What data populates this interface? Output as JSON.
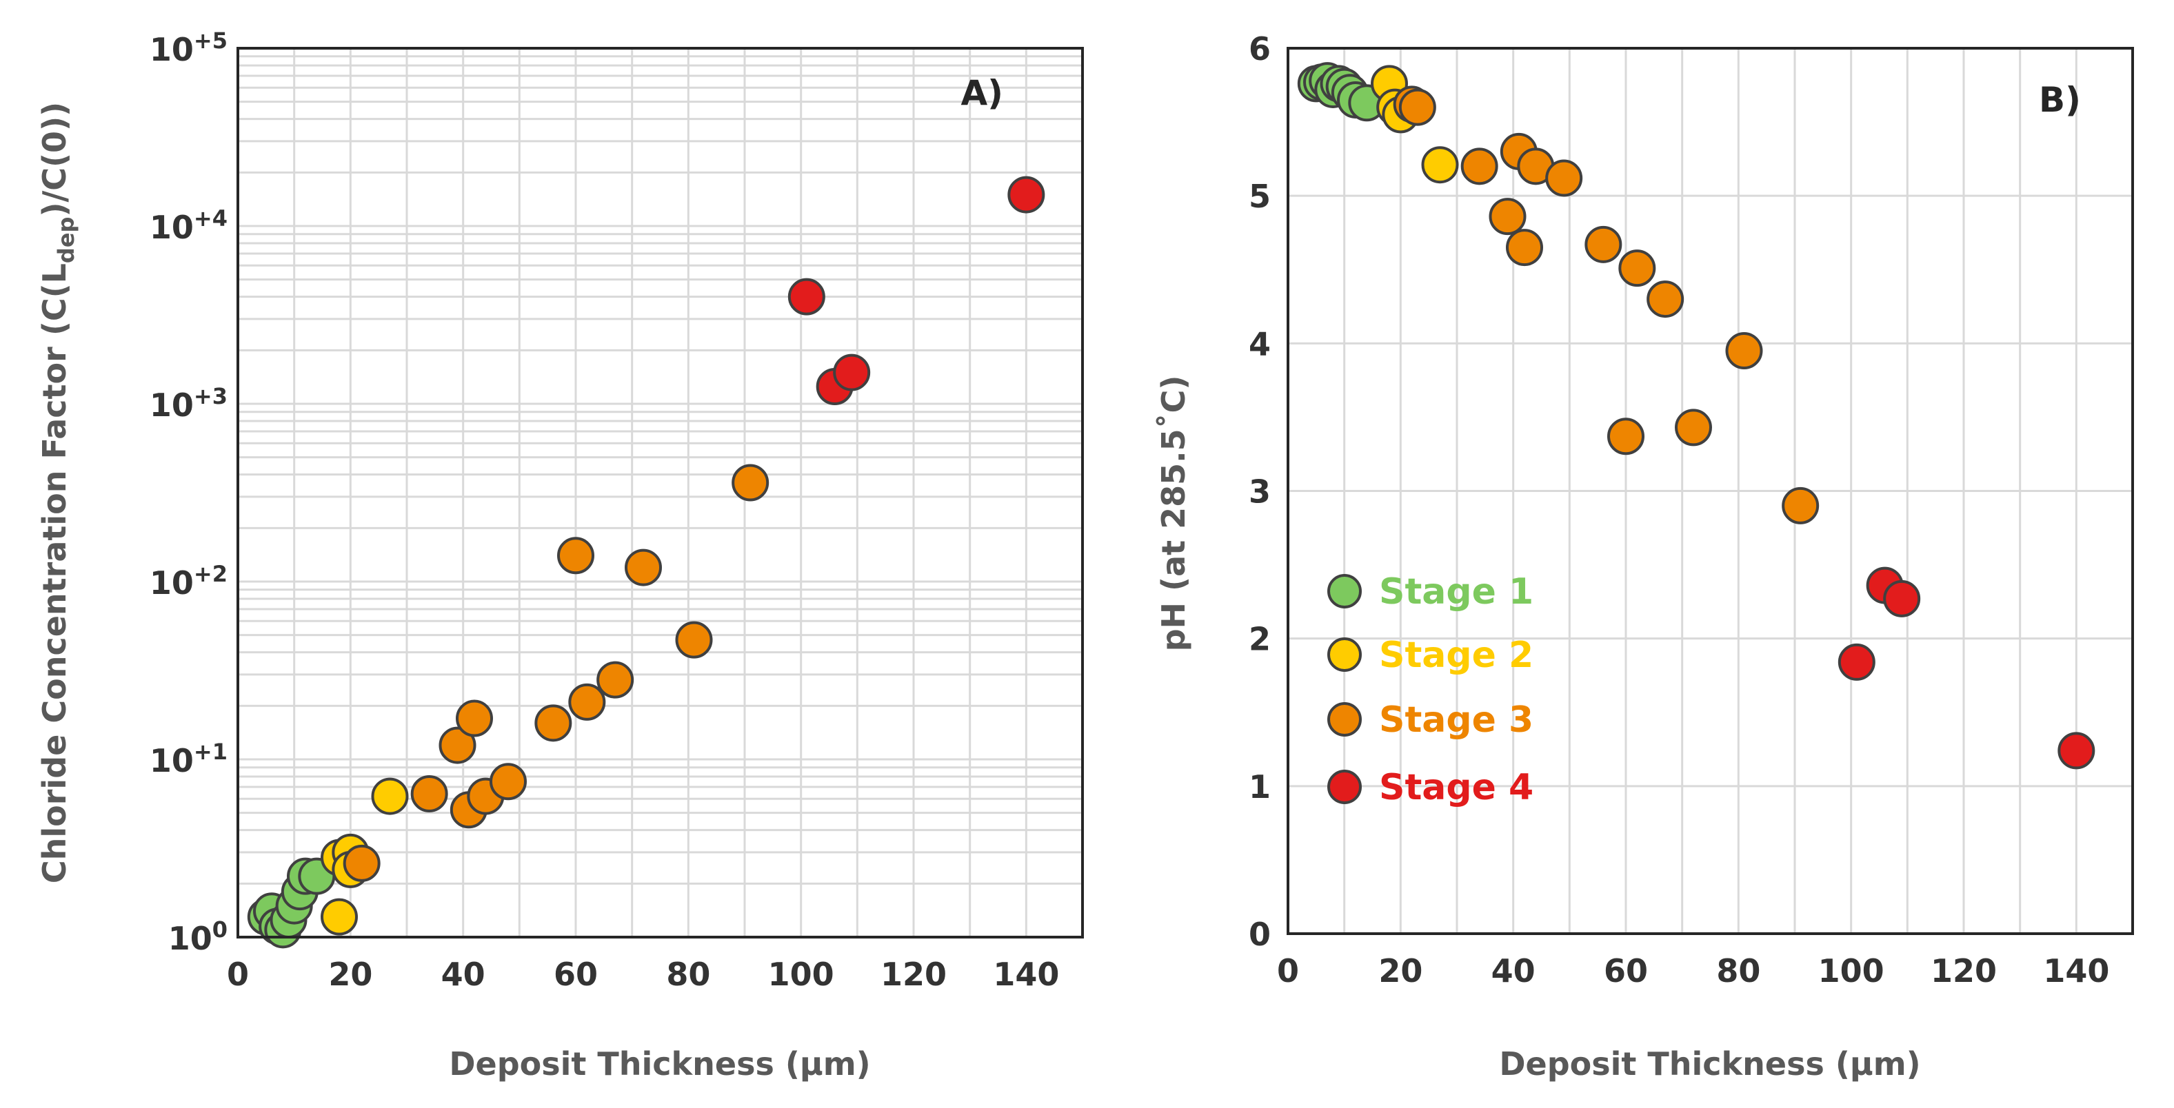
{
  "colors": {
    "stage_1": "#7dc95e",
    "stage_2": "#ffcc00",
    "stage_3": "#ee8500",
    "stage_4": "#e21c1c",
    "marker_edge": "#404040",
    "grid": "#d9d9d9",
    "axis": "#262626",
    "tick_text": "#333333",
    "title_text": "#595959"
  },
  "chart_data": [
    {
      "type": "scatter",
      "panel_label": "A)",
      "xlabel": "Deposit Thickness (µm)",
      "ylabel": {
        "base": "Chloride Concentration Factor (C(L",
        "sub": "dep",
        "end": ")/C(0))"
      },
      "yscale": "log",
      "xlim": [
        0,
        150
      ],
      "ylim": [
        1,
        100000
      ],
      "x_ticks": [
        "0",
        "20",
        "40",
        "60",
        "80",
        "100",
        "120",
        "140"
      ],
      "y_ticks": [
        {
          "base": "10",
          "exp": "0"
        },
        {
          "base": "10",
          "exp": "+1"
        },
        {
          "base": "10",
          "exp": "+2"
        },
        {
          "base": "10",
          "exp": "+3"
        },
        {
          "base": "10",
          "exp": "+4"
        },
        {
          "base": "10",
          "exp": "+5"
        }
      ],
      "series": [
        {
          "name": "Stage 1",
          "color_key": "stage_1",
          "points": [
            [
              5,
              1.3
            ],
            [
              6,
              1.4
            ],
            [
              7,
              1.15
            ],
            [
              8,
              1.1
            ],
            [
              9,
              1.25
            ],
            [
              10,
              1.5
            ],
            [
              11,
              1.8
            ],
            [
              12,
              2.2
            ],
            [
              14,
              2.2
            ]
          ]
        },
        {
          "name": "Stage 2",
          "color_key": "stage_2",
          "points": [
            [
              18,
              1.3
            ],
            [
              18,
              2.8
            ],
            [
              20,
              3.0
            ],
            [
              20,
              2.4
            ],
            [
              27,
              6.2
            ]
          ]
        },
        {
          "name": "Stage 3",
          "color_key": "stage_3",
          "points": [
            [
              22,
              2.6
            ],
            [
              34,
              6.4
            ],
            [
              39,
              12
            ],
            [
              41,
              5.2
            ],
            [
              42,
              17
            ],
            [
              44,
              6.2
            ],
            [
              48,
              7.5
            ],
            [
              56,
              16
            ],
            [
              62,
              21
            ],
            [
              67,
              28
            ],
            [
              60,
              140
            ],
            [
              72,
              120
            ],
            [
              81,
              47
            ],
            [
              91,
              360
            ]
          ]
        },
        {
          "name": "Stage 4",
          "color_key": "stage_4",
          "points": [
            [
              101,
              4000
            ],
            [
              106,
              1250
            ],
            [
              109,
              1500
            ],
            [
              140,
              15000
            ]
          ]
        }
      ]
    },
    {
      "type": "scatter",
      "panel_label": "B)",
      "xlabel": "Deposit Thickness (µm)",
      "ylabel": "pH (at 285.5˚C)",
      "yscale": "linear",
      "xlim": [
        0,
        150
      ],
      "ylim": [
        0,
        6
      ],
      "x_ticks": [
        "0",
        "20",
        "40",
        "60",
        "80",
        "100",
        "120",
        "140"
      ],
      "y_ticks": [
        "0",
        "1",
        "2",
        "3",
        "4",
        "5",
        "6"
      ],
      "legend": {
        "position": "center-left",
        "entries": [
          {
            "label": "Stage 1",
            "color_key": "stage_1"
          },
          {
            "label": "Stage 2",
            "color_key": "stage_2"
          },
          {
            "label": "Stage 3",
            "color_key": "stage_3"
          },
          {
            "label": "Stage 4",
            "color_key": "stage_4"
          }
        ]
      },
      "series": [
        {
          "name": "Stage 1",
          "color_key": "stage_1",
          "points": [
            [
              5,
              5.76
            ],
            [
              6,
              5.77
            ],
            [
              7,
              5.78
            ],
            [
              8,
              5.72
            ],
            [
              9,
              5.76
            ],
            [
              10,
              5.74
            ],
            [
              11,
              5.7
            ],
            [
              12,
              5.65
            ],
            [
              14,
              5.63
            ]
          ]
        },
        {
          "name": "Stage 2",
          "color_key": "stage_2",
          "points": [
            [
              18,
              5.76
            ],
            [
              19,
              5.6
            ],
            [
              20,
              5.55
            ],
            [
              27,
              5.21
            ]
          ]
        },
        {
          "name": "Stage 3",
          "color_key": "stage_3",
          "points": [
            [
              22,
              5.62
            ],
            [
              23,
              5.6
            ],
            [
              34,
              5.2
            ],
            [
              39,
              4.86
            ],
            [
              41,
              5.3
            ],
            [
              42,
              4.65
            ],
            [
              44,
              5.2
            ],
            [
              49,
              5.12
            ],
            [
              56,
              4.67
            ],
            [
              62,
              4.51
            ],
            [
              67,
              4.3
            ],
            [
              60,
              3.37
            ],
            [
              72,
              3.43
            ],
            [
              81,
              3.95
            ],
            [
              91,
              2.9
            ]
          ]
        },
        {
          "name": "Stage 4",
          "color_key": "stage_4",
          "points": [
            [
              101,
              1.84
            ],
            [
              106,
              2.36
            ],
            [
              109,
              2.27
            ],
            [
              140,
              1.24
            ]
          ]
        }
      ]
    }
  ]
}
